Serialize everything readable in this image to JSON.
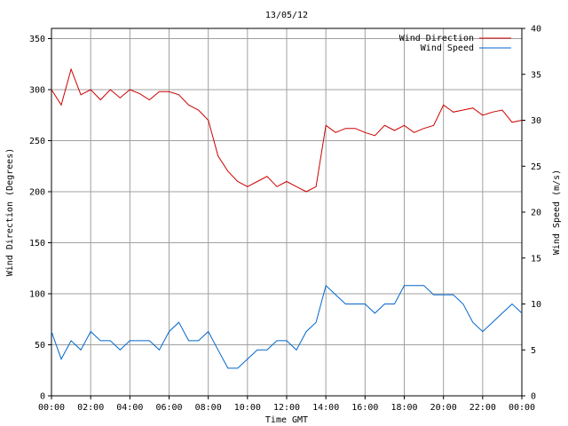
{
  "chart_data": {
    "type": "line",
    "title": "13/05/12",
    "xlabel": "Time GMT",
    "ylabel_left": "Wind Direction (Degrees)",
    "ylabel_right": "Wind Speed (m/s)",
    "x_range_hours": [
      0,
      24
    ],
    "x_ticks": [
      "00:00",
      "02:00",
      "04:00",
      "06:00",
      "08:00",
      "10:00",
      "12:00",
      "14:00",
      "16:00",
      "18:00",
      "20:00",
      "22:00",
      "00:00"
    ],
    "y_left_range": [
      0,
      360
    ],
    "y_left_ticks": [
      0,
      50,
      100,
      150,
      200,
      250,
      300,
      350
    ],
    "y_right_range": [
      0,
      40
    ],
    "y_right_ticks": [
      0,
      5,
      10,
      15,
      20,
      25,
      30,
      35,
      40
    ],
    "grid": true,
    "legend_position": "top-right",
    "series": [
      {
        "name": "Wind Direction",
        "axis": "left",
        "color": "#cc0000",
        "x_hours": [
          0,
          0.5,
          1,
          1.5,
          2,
          2.5,
          3,
          3.5,
          4,
          4.5,
          5,
          5.5,
          6,
          6.5,
          7,
          7.5,
          8,
          8.5,
          9,
          9.5,
          10,
          10.5,
          11,
          11.5,
          12,
          12.5,
          13,
          13.5,
          14,
          14.5,
          15,
          15.5,
          16,
          16.5,
          17,
          17.5,
          18,
          18.5,
          19,
          19.5,
          20,
          20.5,
          21,
          21.5,
          22,
          22.5,
          23,
          23.5,
          24
        ],
        "values": [
          300,
          285,
          320,
          295,
          300,
          290,
          300,
          292,
          300,
          296,
          290,
          298,
          298,
          295,
          285,
          280,
          270,
          235,
          220,
          210,
          205,
          210,
          215,
          205,
          210,
          205,
          200,
          205,
          265,
          258,
          262,
          262,
          258,
          255,
          265,
          260,
          265,
          258,
          262,
          265,
          285,
          278,
          280,
          282,
          275,
          278,
          280,
          268,
          270
        ]
      },
      {
        "name": "Wind Speed",
        "axis": "right",
        "color": "#0066cc",
        "x_hours": [
          0,
          0.5,
          1,
          1.5,
          2,
          2.5,
          3,
          3.5,
          4,
          4.5,
          5,
          5.5,
          6,
          6.5,
          7,
          7.5,
          8,
          8.5,
          9,
          9.5,
          10,
          10.5,
          11,
          11.5,
          12,
          12.5,
          13,
          13.5,
          14,
          14.5,
          15,
          15.5,
          16,
          16.5,
          17,
          17.5,
          18,
          18.5,
          19,
          19.5,
          20,
          20.5,
          21,
          21.5,
          22,
          22.5,
          23,
          23.5,
          24
        ],
        "values": [
          7,
          4,
          6,
          5,
          7,
          6,
          6,
          5,
          6,
          6,
          6,
          5,
          7,
          8,
          6,
          6,
          7,
          5,
          3,
          3,
          4,
          5,
          5,
          6,
          6,
          5,
          7,
          8,
          12,
          11,
          10,
          10,
          10,
          9,
          10,
          10,
          12,
          12,
          12,
          11,
          11,
          11,
          10,
          8,
          7,
          8,
          9,
          10,
          9
        ]
      }
    ]
  }
}
